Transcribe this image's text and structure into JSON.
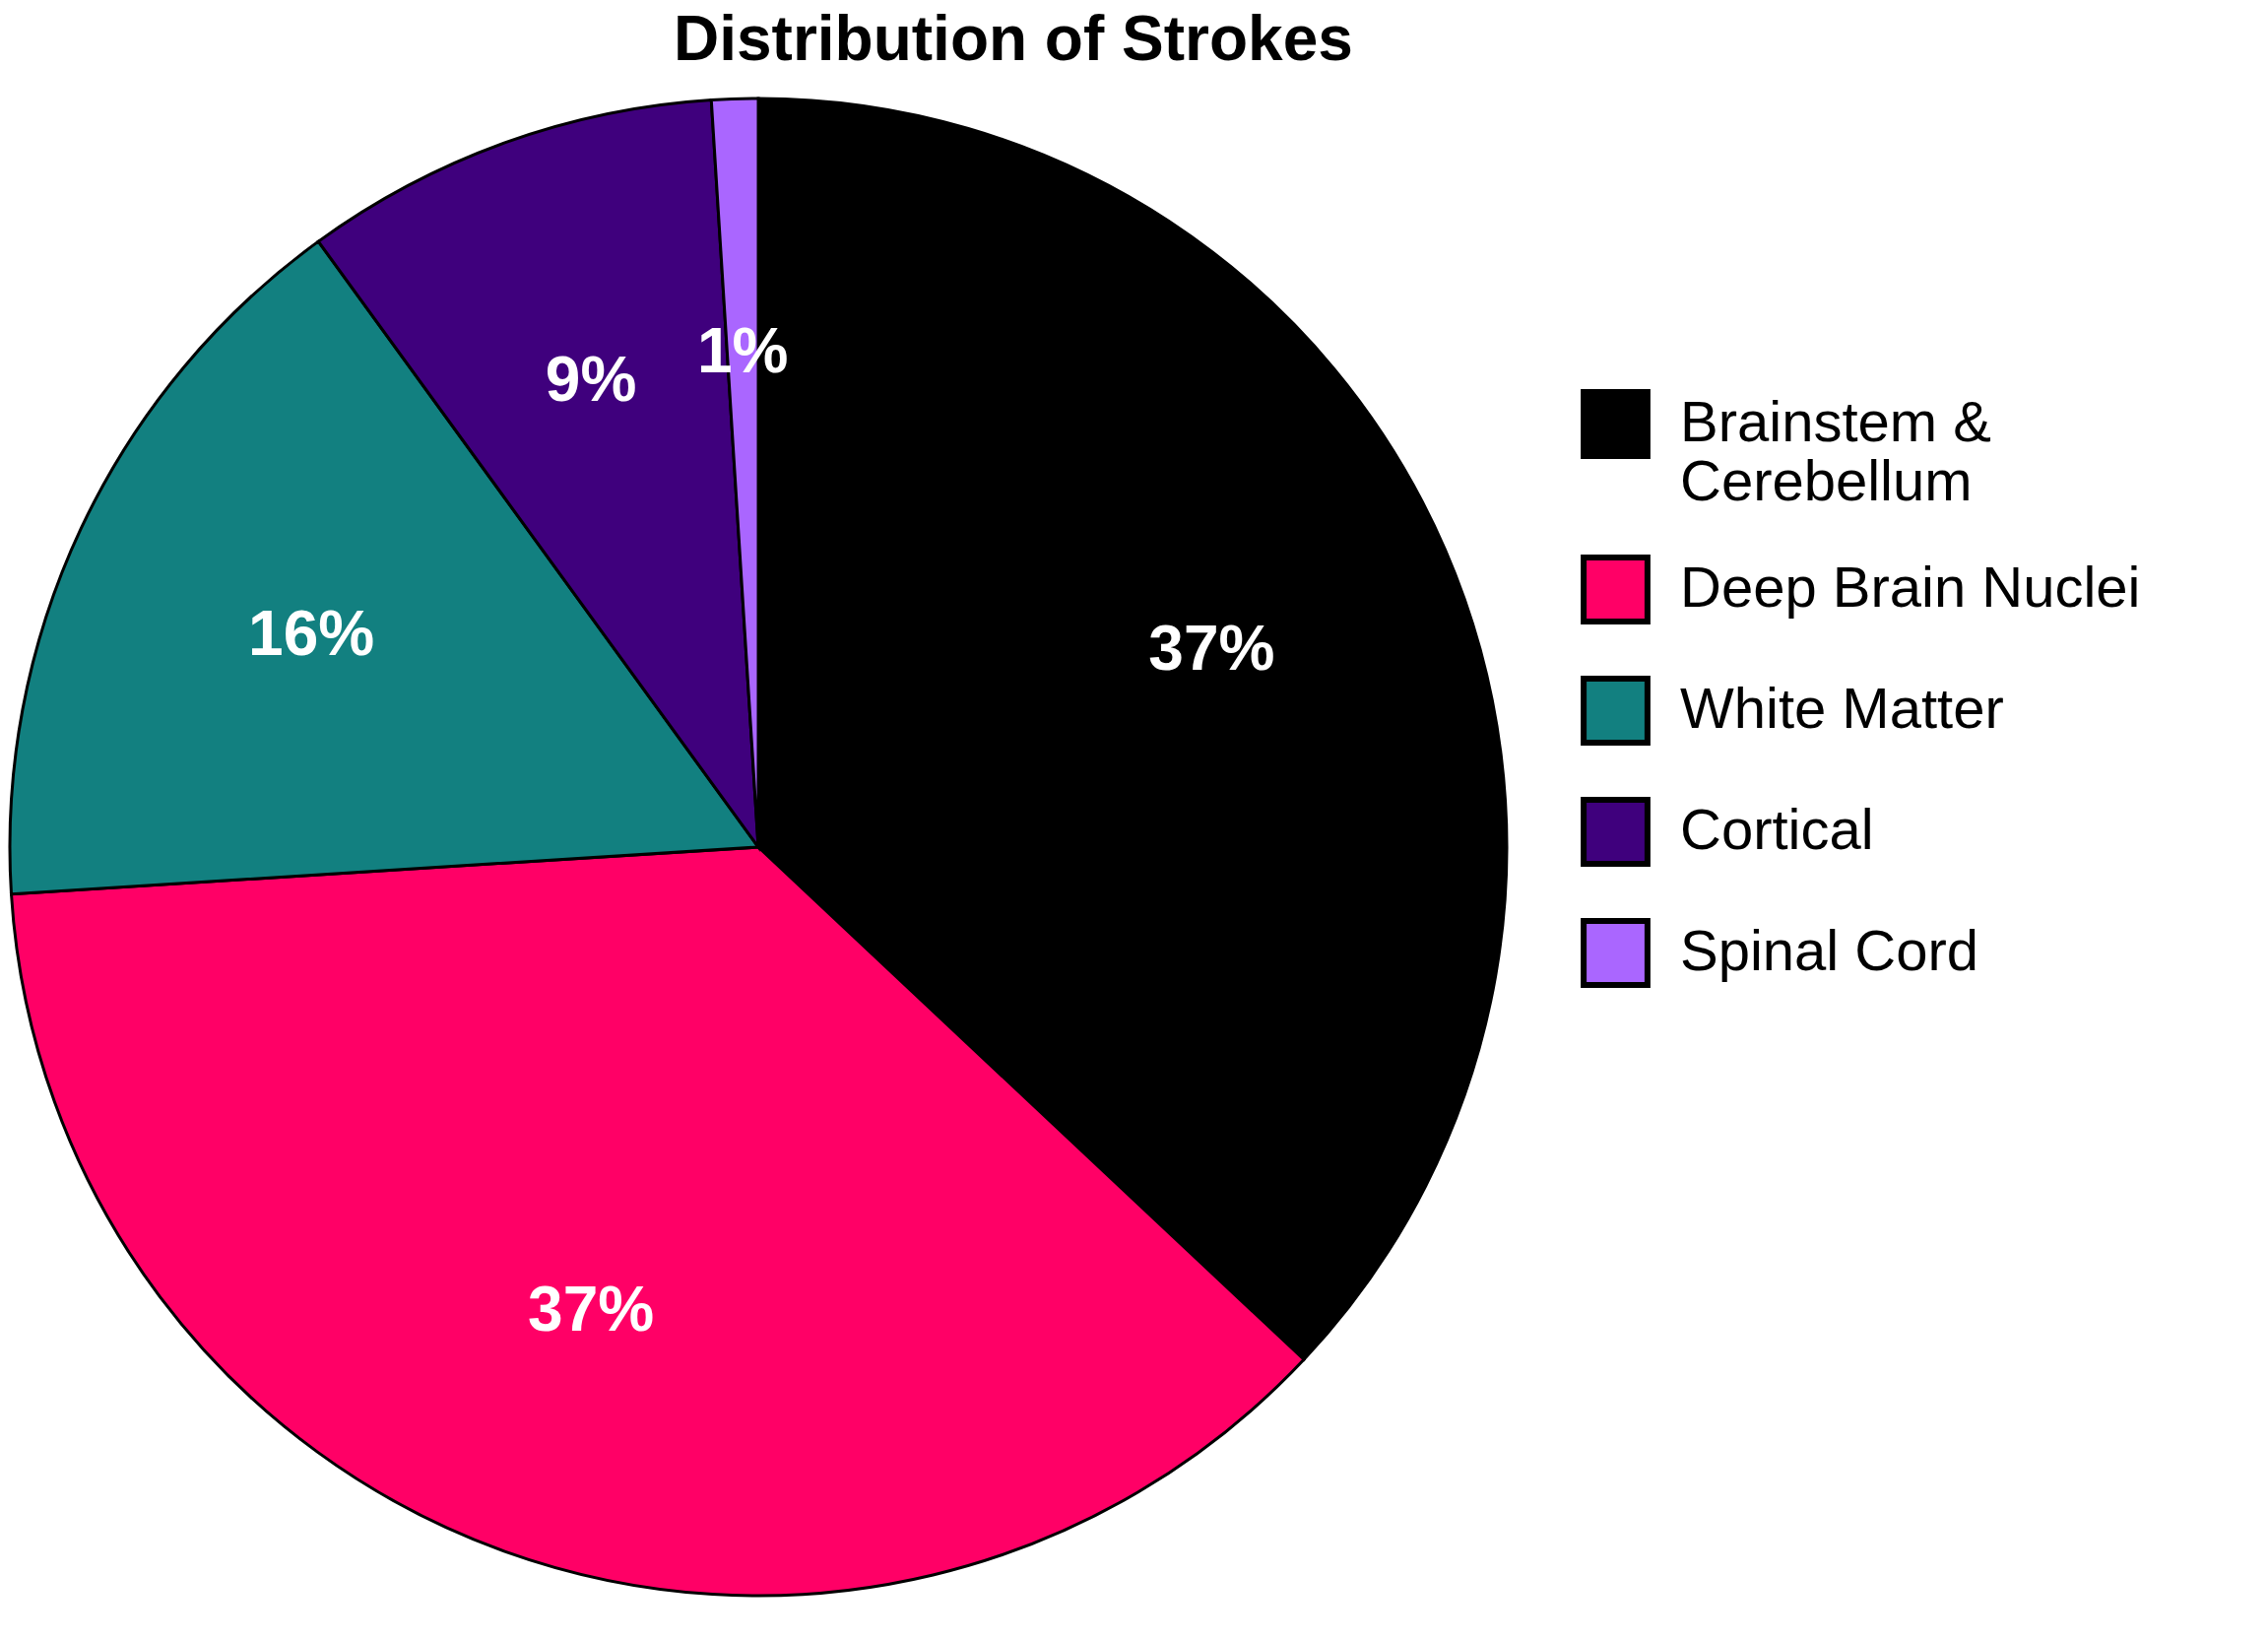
{
  "chart_data": {
    "type": "pie",
    "title": "Distribution of Strokes",
    "categories": [
      "Brainstem & Cerebellum",
      "Deep Brain Nuclei",
      "White Matter",
      "Cortical",
      "Spinal Cord"
    ],
    "values": [
      37,
      37,
      16,
      9,
      1
    ],
    "value_labels": [
      "37%",
      "37%",
      "16%",
      "9%",
      "1%"
    ],
    "colors": [
      "#000000",
      "#ff0066",
      "#128080",
      "#3f007d",
      "#aa66ff"
    ],
    "legend": "right"
  }
}
